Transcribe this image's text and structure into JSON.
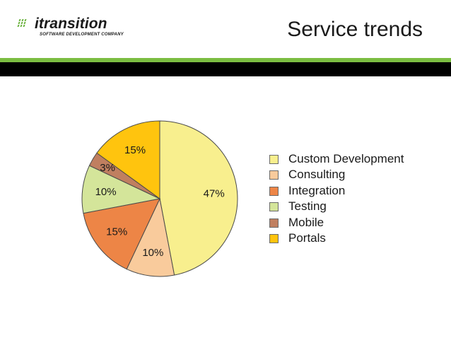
{
  "header": {
    "title": "Service trends",
    "logo": {
      "name": "itransition",
      "tagline": "SOFTWARE DEVELOPMENT COMPANY"
    }
  },
  "colors": {
    "accent_green": "#7bbd42",
    "band_black": "#000000"
  },
  "chart_data": {
    "type": "pie",
    "title": "",
    "categories": [
      "Custom Development",
      "Consulting",
      "Integration",
      "Testing",
      "Mobile",
      "Portals"
    ],
    "values": [
      47,
      10,
      15,
      10,
      3,
      15
    ],
    "labels": [
      "47%",
      "10%",
      "15%",
      "10%",
      "3%",
      "15%"
    ],
    "colors": [
      "#f8ef8e",
      "#f9cb9c",
      "#ed8546",
      "#d4e59a",
      "#c07f60",
      "#ffc40e"
    ],
    "legend_position": "right",
    "start_angle_deg": 0,
    "direction": "clockwise"
  }
}
